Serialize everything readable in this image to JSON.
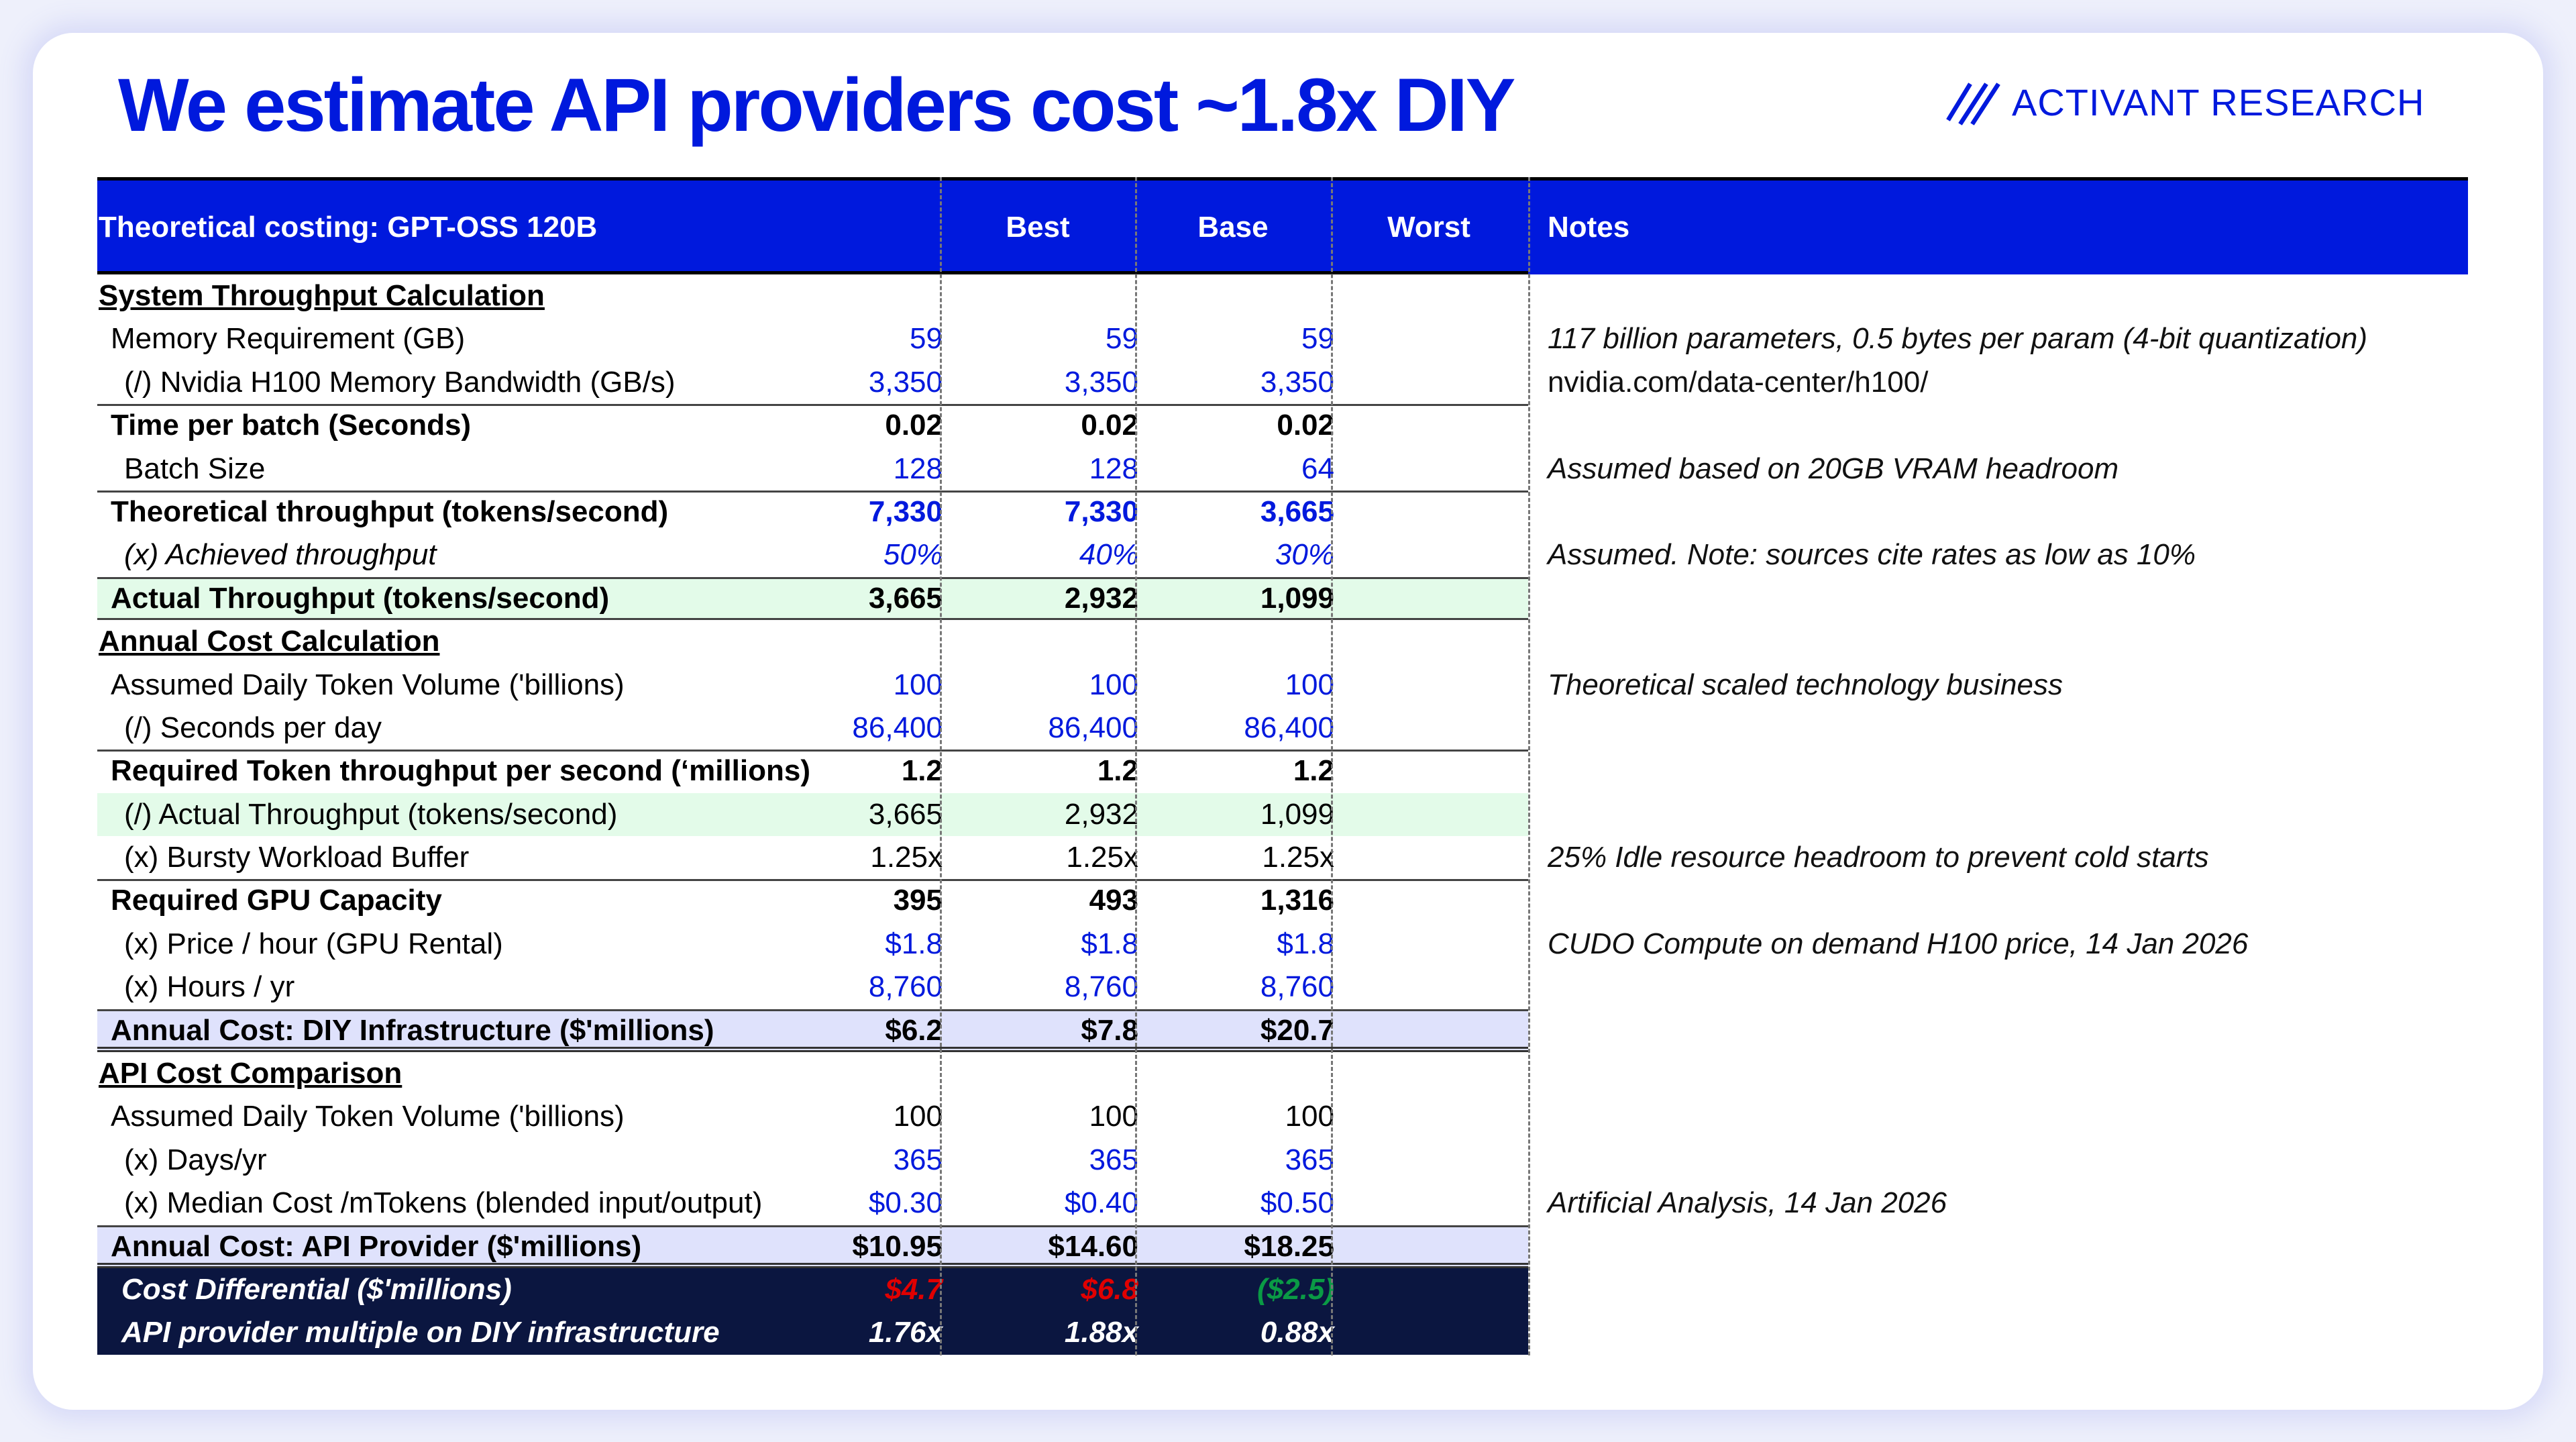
{
  "title": "We estimate API providers cost ~1.8x DIY",
  "logo": "ACTIVANT RESEARCH",
  "colors": {
    "brand": "#0019dd",
    "input": "#0019dd",
    "negative": "#e00000",
    "positive": "#0a9a45"
  },
  "header": {
    "label": "Theoretical costing: GPT-OSS 120B",
    "cols": [
      "Best",
      "Base",
      "Worst"
    ],
    "notes": "Notes"
  },
  "rows": [
    {
      "label": "System Throughput Calculation",
      "cls": "sec",
      "values": [],
      "note": ""
    },
    {
      "label": "Memory Requirement (GB)",
      "cls": "",
      "values": [
        "59",
        "59",
        "59"
      ],
      "color": "input",
      "note": "117 billion parameters, 0.5 bytes per param (4-bit quantization)"
    },
    {
      "label": "(/) Nvidia H100 Memory Bandwidth (GB/s)",
      "cls": "ind",
      "values": [
        "3,350",
        "3,350",
        "3,350"
      ],
      "color": "input",
      "note": " nvidia.com/data-center/h100/",
      "noteUpright": true
    },
    {
      "label": "Time per batch (Seconds)",
      "cls": "bold topb",
      "values": [
        "0.02",
        "0.02",
        "0.02"
      ],
      "note": ""
    },
    {
      "label": "Batch Size",
      "cls": "ind",
      "values": [
        "128",
        "128",
        "64"
      ],
      "color": "input",
      "note": "Assumed based on 20GB VRAM headroom"
    },
    {
      "label": "Theoretical throughput (tokens/second)",
      "cls": "bold topb",
      "values": [
        "7,330",
        "7,330",
        "3,665"
      ],
      "color": "input",
      "note": ""
    },
    {
      "label": "(x) Achieved throughput",
      "cls": "ind ital",
      "values": [
        "50%",
        "40%",
        "30%"
      ],
      "color": "input",
      "note": "Assumed. Note: sources cite rates as low as 10%"
    },
    {
      "label": "Actual Throughput (tokens/second)",
      "cls": "bold green lav2",
      "values": [
        "3,665",
        "2,932",
        "1,099"
      ],
      "note": ""
    },
    {
      "label": "Annual Cost Calculation",
      "cls": "sec",
      "values": [],
      "note": ""
    },
    {
      "label": "Assumed Daily Token Volume ('billions)",
      "cls": "",
      "values": [
        "100",
        "100",
        "100"
      ],
      "color": "input",
      "note": "Theoretical scaled technology business"
    },
    {
      "label": "(/) Seconds per day",
      "cls": "ind",
      "values": [
        "86,400",
        "86,400",
        "86,400"
      ],
      "color": "input",
      "note": ""
    },
    {
      "label": "Required Token throughput per second (‘millions)",
      "cls": "bold topb",
      "values": [
        "1.2",
        "1.2",
        "1.2"
      ],
      "note": ""
    },
    {
      "label": "(/)  Actual Throughput (tokens/second)",
      "cls": "ind green",
      "values": [
        "3,665",
        "2,932",
        "1,099"
      ],
      "note": ""
    },
    {
      "label": "(x) Bursty Workload Buffer",
      "cls": "ind",
      "values": [
        "1.25x",
        "1.25x",
        "1.25x"
      ],
      "note": "25% Idle resource headroom to prevent cold starts"
    },
    {
      "label": "Required GPU Capacity",
      "cls": "bold topb",
      "values": [
        "395",
        "493",
        "1,316"
      ],
      "note": ""
    },
    {
      "label": "(x) Price / hour (GPU Rental)",
      "cls": "ind",
      "values": [
        "$1.8",
        "$1.8",
        "$1.8"
      ],
      "color": "input",
      "note": "CUDO Compute on demand H100 price, 14 Jan 2026"
    },
    {
      "label": "(x) Hours / yr",
      "cls": "ind",
      "values": [
        "8,760",
        "8,760",
        "8,760"
      ],
      "color": "input",
      "note": ""
    },
    {
      "label": "Annual Cost: DIY Infrastructure ($'millions)",
      "cls": "bold lav",
      "values": [
        "$6.2",
        "$7.8",
        "$20.7"
      ],
      "note": ""
    },
    {
      "label": "API Cost Comparison",
      "cls": "sec",
      "values": [],
      "note": ""
    },
    {
      "label": "Assumed Daily Token Volume ('billions)",
      "cls": "",
      "values": [
        "100",
        "100",
        "100"
      ],
      "note": ""
    },
    {
      "label": "(x) Days/yr",
      "cls": "ind",
      "values": [
        "365",
        "365",
        "365"
      ],
      "color": "input",
      "note": ""
    },
    {
      "label": "(x) Median Cost /mTokens (blended input/output)",
      "cls": "ind",
      "values": [
        "$0.30",
        "$0.40",
        "$0.50"
      ],
      "color": "input",
      "note": "Artificial Analysis, 14 Jan 2026"
    },
    {
      "label": "Annual Cost: API Provider ($'millions)",
      "cls": "bold lav",
      "values": [
        "$10.95",
        "$14.60",
        "$18.25"
      ],
      "note": ""
    },
    {
      "label": "Cost Differential ($'millions)",
      "cls": "dark",
      "values": [
        "$4.7",
        "$6.8",
        "($2.5)"
      ],
      "valueColors": [
        "negative",
        "negative",
        "positive"
      ],
      "note": ""
    },
    {
      "label": "API provider multiple on DIY infrastructure",
      "cls": "dark",
      "values": [
        "1.76x",
        "1.88x",
        "0.88x"
      ],
      "note": ""
    }
  ]
}
